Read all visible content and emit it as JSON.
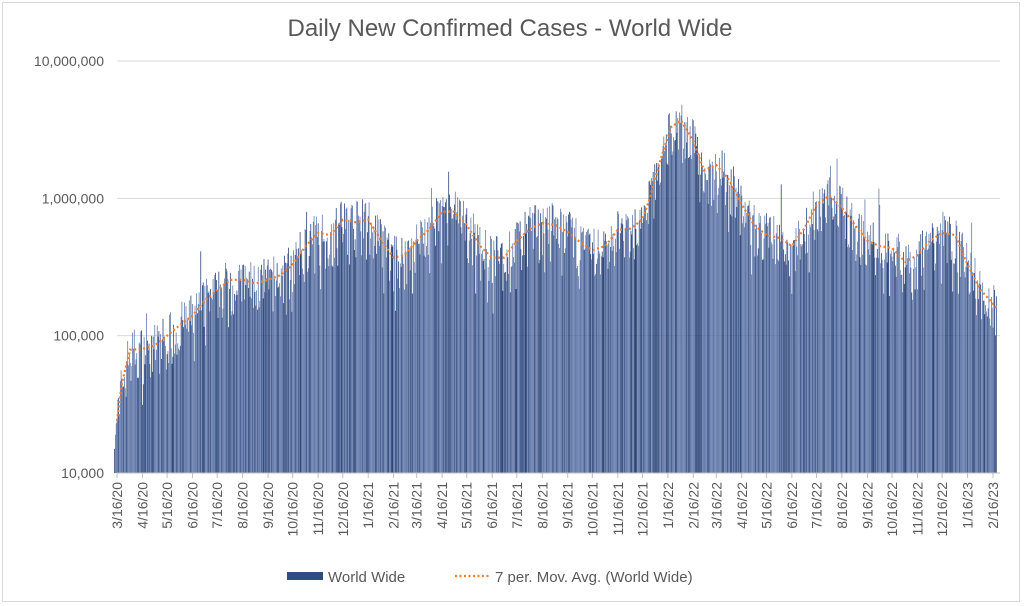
{
  "chart_data": {
    "type": "bar",
    "title": "Daily New Confirmed Cases - World Wide",
    "xlabel": "",
    "ylabel": "",
    "y_scale": "log",
    "ylim": [
      10000,
      10000000
    ],
    "y_ticks": [
      "10,000",
      "100,000",
      "1,000,000",
      "10,000,000"
    ],
    "y_tick_values": [
      10000,
      100000,
      1000000,
      10000000
    ],
    "x_ticks": [
      "3/16/20",
      "4/16/20",
      "5/16/20",
      "6/16/20",
      "7/16/20",
      "8/16/20",
      "9/16/20",
      "10/16/20",
      "11/16/20",
      "12/16/20",
      "1/16/21",
      "2/16/21",
      "3/16/21",
      "4/16/21",
      "5/16/21",
      "6/16/21",
      "7/16/21",
      "8/16/21",
      "9/16/21",
      "10/16/21",
      "11/16/21",
      "12/16/21",
      "1/16/22",
      "2/16/22",
      "3/16/22",
      "4/16/22",
      "5/16/22",
      "6/16/22",
      "7/16/22",
      "8/16/22",
      "9/16/22",
      "10/16/22",
      "11/16/22",
      "12/16/22",
      "1/16/23",
      "2/16/23"
    ],
    "grid": true,
    "legend_position": "bottom",
    "colors": {
      "bars": "#2f4b84",
      "moving_average": "#ed7d31"
    },
    "series": [
      {
        "name": "World Wide",
        "type": "bar",
        "note_values": "daily values, approximated by the moving average trend with day-to-day variation"
      },
      {
        "name": "7 per. Mov. Avg. (World Wide)",
        "type": "line-dotted",
        "x": [
          "3/16/20",
          "3/22/20",
          "4/1/20",
          "4/16/20",
          "5/1/20",
          "5/16/20",
          "6/1/20",
          "6/16/20",
          "7/1/20",
          "7/16/20",
          "8/1/20",
          "8/16/20",
          "9/1/20",
          "9/16/20",
          "10/1/20",
          "10/16/20",
          "11/1/20",
          "11/16/20",
          "12/1/20",
          "12/16/20",
          "1/1/21",
          "1/16/21",
          "2/1/21",
          "2/16/21",
          "3/1/21",
          "3/16/21",
          "4/1/21",
          "4/16/21",
          "5/1/21",
          "5/16/21",
          "6/1/21",
          "6/16/21",
          "7/1/21",
          "7/16/21",
          "8/1/21",
          "8/16/21",
          "9/1/21",
          "9/16/21",
          "10/1/21",
          "10/16/21",
          "11/1/21",
          "11/16/21",
          "12/1/21",
          "12/16/21",
          "12/25/21",
          "1/8/22",
          "1/20/22",
          "2/1/22",
          "2/16/22",
          "3/1/22",
          "3/16/22",
          "4/1/22",
          "4/16/22",
          "5/1/22",
          "5/16/22",
          "6/1/22",
          "6/16/22",
          "7/1/22",
          "7/16/22",
          "8/1/22",
          "8/16/22",
          "9/1/22",
          "9/16/22",
          "10/1/22",
          "10/16/22",
          "11/1/22",
          "11/16/22",
          "12/1/22",
          "12/16/22",
          "1/1/23",
          "1/16/23",
          "2/1/23",
          "2/20/23"
        ],
        "values": [
          24000,
          45000,
          79000,
          80000,
          85000,
          100000,
          120000,
          140000,
          180000,
          215000,
          255000,
          255000,
          240000,
          255000,
          275000,
          330000,
          450000,
          560000,
          540000,
          700000,
          670000,
          700000,
          490000,
          370000,
          385000,
          490000,
          600000,
          800000,
          800000,
          640000,
          450000,
          370000,
          370000,
          490000,
          600000,
          660000,
          640000,
          570000,
          480000,
          420000,
          450000,
          590000,
          600000,
          700000,
          1000000,
          2000000,
          3300000,
          3700000,
          2600000,
          1600000,
          1750000,
          1350000,
          900000,
          640000,
          540000,
          515000,
          450000,
          600000,
          900000,
          1050000,
          850000,
          640000,
          490000,
          450000,
          435000,
          345000,
          385000,
          490000,
          560000,
          540000,
          330000,
          215000,
          160000
        ]
      }
    ]
  }
}
